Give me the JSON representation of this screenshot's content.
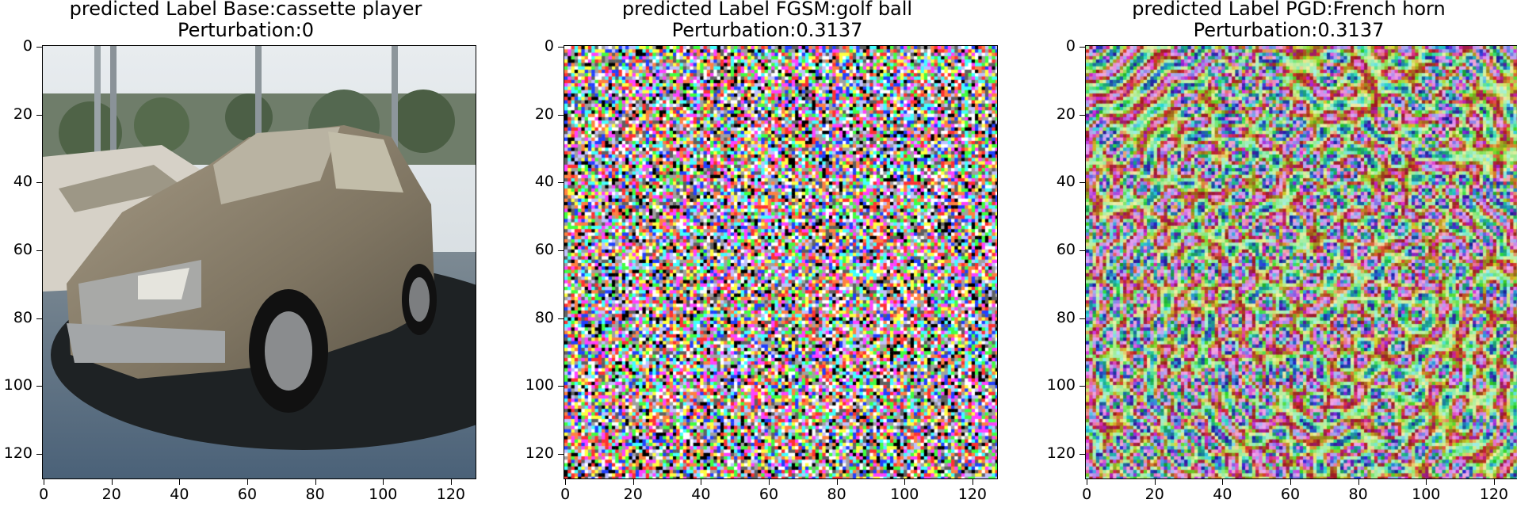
{
  "panels": [
    {
      "title_line1": "predicted Label Base:cassette player",
      "title_line2": "Perturbation:0",
      "image": "clean photo of a silver-gray sedan in a parking lot",
      "kind": "clean"
    },
    {
      "title_line1": "predicted Label FGSM:golf ball",
      "title_line2": "Perturbation:0.3137",
      "image": "FGSM adversarial perturbation of the sedan image (high-frequency colorful noise)",
      "kind": "fgsm"
    },
    {
      "title_line1": "predicted Label PGD:French horn",
      "title_line2": "Perturbation:0.3137",
      "image": "PGD adversarial perturbation of the sedan image (swirling circular texture patterns)",
      "kind": "pgd"
    }
  ],
  "axis": {
    "yticks": [
      "0",
      "20",
      "40",
      "60",
      "80",
      "100",
      "120"
    ],
    "xticks": [
      "0",
      "20",
      "40",
      "60",
      "80",
      "100",
      "120"
    ],
    "range": [
      0,
      128
    ]
  }
}
